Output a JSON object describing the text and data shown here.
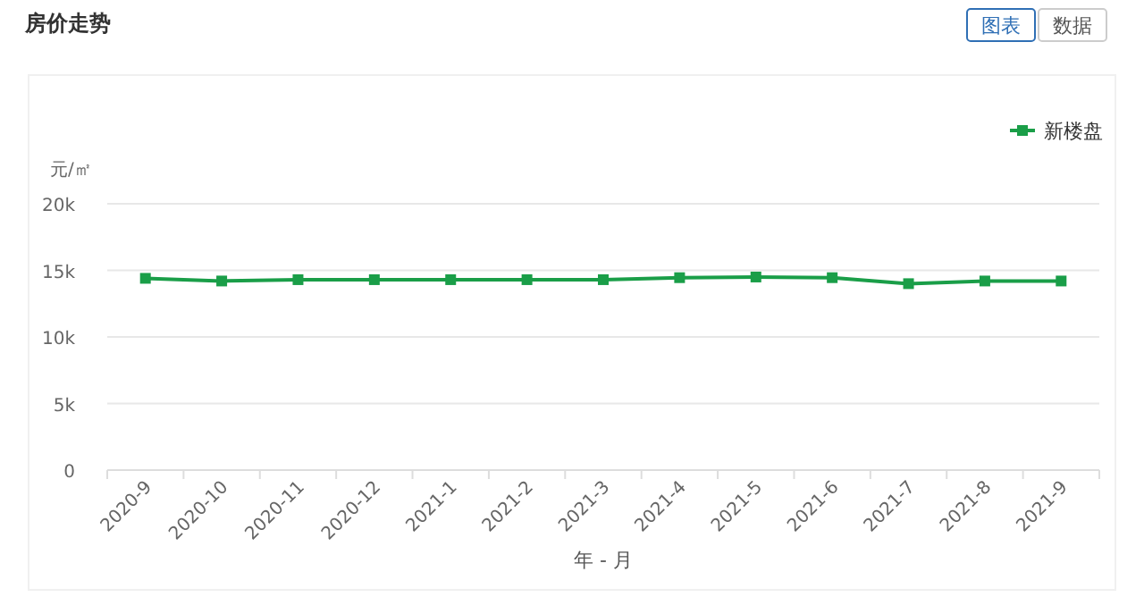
{
  "chart_data": {
    "type": "line",
    "title": "房价走势",
    "xlabel": "年 - 月",
    "ylabel": "元/㎡",
    "annotations": [
      "图表",
      "数据"
    ],
    "categories": [
      "2020-9",
      "2020-10",
      "2020-11",
      "2020-12",
      "2021-1",
      "2021-2",
      "2021-3",
      "2021-4",
      "2021-5",
      "2021-6",
      "2021-7",
      "2021-8",
      "2021-9"
    ],
    "series": [
      {
        "name": "新楼盘",
        "color": "#1a9e48",
        "values": [
          14400,
          14200,
          14300,
          14300,
          14300,
          14300,
          14300,
          14450,
          14500,
          14450,
          14000,
          14200,
          14200
        ]
      }
    ],
    "ylim": [
      0,
      20000
    ],
    "yticks": [
      0,
      {
        "value": 5000,
        "label": "5k"
      },
      {
        "value": 10000,
        "label": "10k"
      },
      {
        "value": 15000,
        "label": "15k"
      },
      {
        "value": 20000,
        "label": "20k"
      }
    ],
    "grid": "y",
    "legend": "top right",
    "marker": "square",
    "line_style": "solid"
  }
}
